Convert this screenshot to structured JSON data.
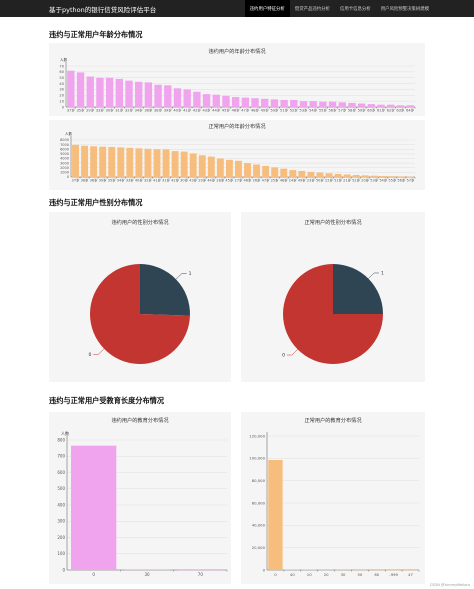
{
  "navbar": {
    "brand": "基于python的银行信贷风险评估平台",
    "items": [
      "违约用户特征分析",
      "借贷产品违约分析",
      "信用卡信息分析",
      "用户风险预警决策树建模"
    ],
    "active_index": 0
  },
  "sections": [
    {
      "title": "违约与正常用户年龄分布情况"
    },
    {
      "title": "违约与正常用户性别分布情况"
    },
    {
      "title": "违约与正常用户受教育长度分布情况"
    }
  ],
  "colors": {
    "pink": "#f0a4ee",
    "orange": "#f6bd7d",
    "red": "#c23531",
    "navy": "#2f4554"
  },
  "chart_data": [
    {
      "type": "bar",
      "title": "违约用户的年龄分布情况",
      "ylabel": "人数",
      "ylim": [
        0,
        70
      ],
      "yticks": [
        0,
        10,
        20,
        30,
        40,
        50,
        60,
        70
      ],
      "categories": [
        "37岁",
        "35岁",
        "29岁",
        "33岁",
        "30岁",
        "31岁",
        "32岁",
        "34岁",
        "36岁",
        "38岁",
        "39岁",
        "40岁",
        "41岁",
        "42岁",
        "43岁",
        "44岁",
        "45岁",
        "46岁",
        "47岁",
        "48岁",
        "49岁",
        "50岁",
        "51岁",
        "52岁",
        "53岁",
        "54岁",
        "55岁",
        "56岁",
        "57岁",
        "58岁",
        "59岁",
        "60岁",
        "61岁",
        "62岁",
        "63岁",
        "64岁"
      ],
      "values": [
        62,
        59,
        52,
        50,
        50,
        48,
        45,
        43,
        42,
        38,
        37,
        32,
        30,
        26,
        22,
        21,
        19,
        17,
        16,
        15,
        14,
        13,
        12,
        12,
        10,
        10,
        9,
        9,
        8,
        7,
        6,
        5,
        4,
        4,
        3,
        3
      ],
      "color": "#f0a4ee"
    },
    {
      "type": "bar",
      "title": "正常用户的年龄分布情况",
      "ylabel": "人数",
      "ylim": [
        0,
        8000
      ],
      "yticks": [
        0,
        1000,
        2000,
        3000,
        4000,
        5000,
        6000,
        7000,
        8000
      ],
      "categories": [
        "37岁",
        "36岁",
        "38岁",
        "39岁",
        "35岁",
        "34岁",
        "33岁",
        "40岁",
        "32岁",
        "41岁",
        "31岁",
        "42岁",
        "30岁",
        "43岁",
        "29岁",
        "44岁",
        "28岁",
        "45岁",
        "27岁",
        "46岁",
        "26岁",
        "47岁",
        "25岁",
        "48岁",
        "24岁",
        "49岁",
        "23岁",
        "50岁",
        "22岁",
        "51岁",
        "21岁",
        "52岁",
        "20岁",
        "53岁",
        "54岁",
        "55岁",
        "56岁",
        "57岁"
      ],
      "values": [
        6950,
        6750,
        6650,
        6550,
        6500,
        6400,
        6300,
        6200,
        6100,
        6000,
        5950,
        5600,
        5500,
        5100,
        4700,
        4400,
        4000,
        3700,
        3500,
        3000,
        2700,
        2400,
        2100,
        1800,
        1500,
        1300,
        1100,
        950,
        800,
        650,
        550,
        450,
        350,
        280,
        220,
        170,
        130,
        100
      ],
      "color": "#f6bd7d"
    },
    {
      "type": "pie",
      "title": "违约用户的性别分布情况",
      "slices": [
        {
          "label": "1",
          "value": 25.5,
          "color": "#2f4554"
        },
        {
          "label": "0",
          "value": 74.5,
          "color": "#c23531"
        }
      ]
    },
    {
      "type": "pie",
      "title": "正常用户的性别分布情况",
      "slices": [
        {
          "label": "1",
          "value": 25,
          "color": "#2f4554"
        },
        {
          "label": "0",
          "value": 75,
          "color": "#c23531"
        }
      ]
    },
    {
      "type": "bar",
      "title": "违约用户的教育分布情况",
      "ylabel": "人数",
      "ylim": [
        0,
        800
      ],
      "yticks": [
        0,
        100,
        200,
        300,
        400,
        500,
        600,
        700,
        800
      ],
      "categories": [
        "0",
        "30",
        "70"
      ],
      "values": [
        765,
        2,
        1
      ],
      "color": "#f0a4ee"
    },
    {
      "type": "bar",
      "title": "正常用户的教育分布情况",
      "ylabel": "",
      "ylim": [
        0,
        120000
      ],
      "yticks": [
        0,
        20000,
        40000,
        60000,
        80000,
        100000,
        120000
      ],
      "ytick_labels": [
        "0",
        "20,000",
        "40,000",
        "60,000",
        "80,000",
        "100,000",
        "120,000"
      ],
      "categories": [
        "0",
        "40",
        "10",
        "20",
        "30",
        "50",
        "60",
        "-999",
        "47"
      ],
      "values": [
        98500,
        500,
        400,
        300,
        250,
        200,
        150,
        100,
        50
      ],
      "color": "#f6bd7d"
    }
  ],
  "footer": "CSDN @YummyMeliora"
}
